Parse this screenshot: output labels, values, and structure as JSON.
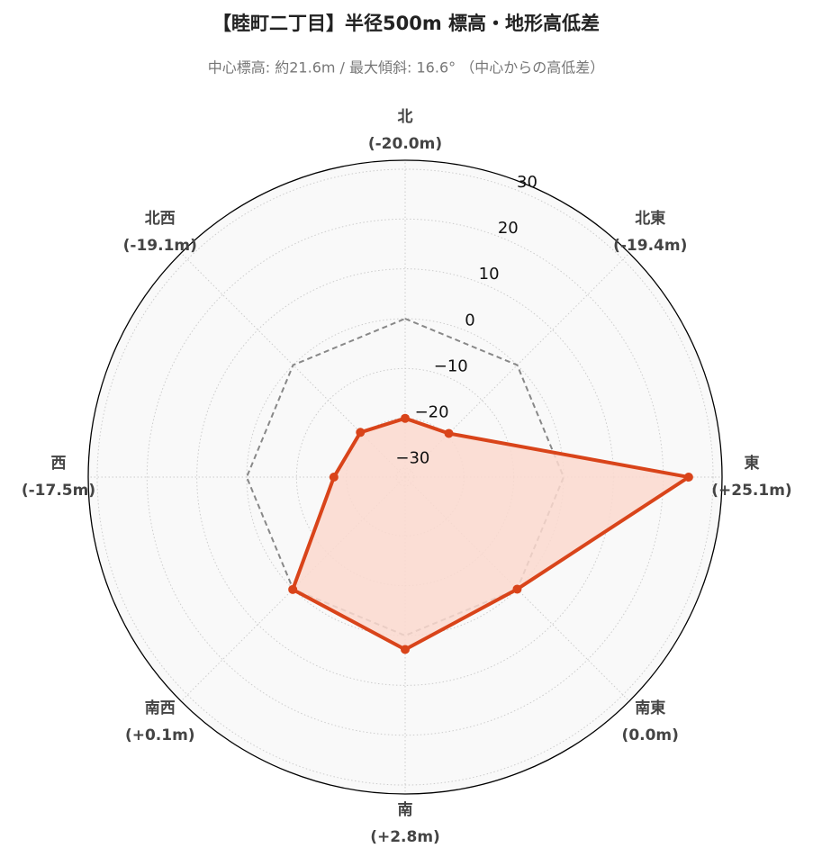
{
  "chart_data": {
    "type": "radar",
    "title": "【睦町二丁目】半径500m 標高・地形高低差",
    "subtitle": "中心標高: 約21.6m / 最大傾斜: 16.6° （中心からの高低差）",
    "categories": [
      "北",
      "北東",
      "東",
      "南東",
      "南",
      "南西",
      "西",
      "北西"
    ],
    "series": [
      {
        "color": "#d9441a",
        "fill": "#fbd9cf",
        "values": [
          -20.0,
          -19.4,
          25.1,
          0.0,
          2.8,
          0.1,
          -17.5,
          -19.1
        ],
        "value_labels": [
          "(-20.0m)",
          "(-19.4m)",
          "(+25.1m)",
          "(0.0m)",
          "(+2.8m)",
          "(+0.1m)",
          "(-17.5m)",
          "(-19.1m)"
        ]
      }
    ],
    "reference_line": {
      "value": 0,
      "color": "#888888",
      "dashed": true
    },
    "rlim": [
      -31.8,
      31.8
    ],
    "rticks": [
      {
        "value": -30,
        "label": "−30"
      },
      {
        "value": -20,
        "label": "−20"
      },
      {
        "value": -10,
        "label": "−10"
      },
      0,
      10,
      20,
      30
    ],
    "grid": true
  }
}
